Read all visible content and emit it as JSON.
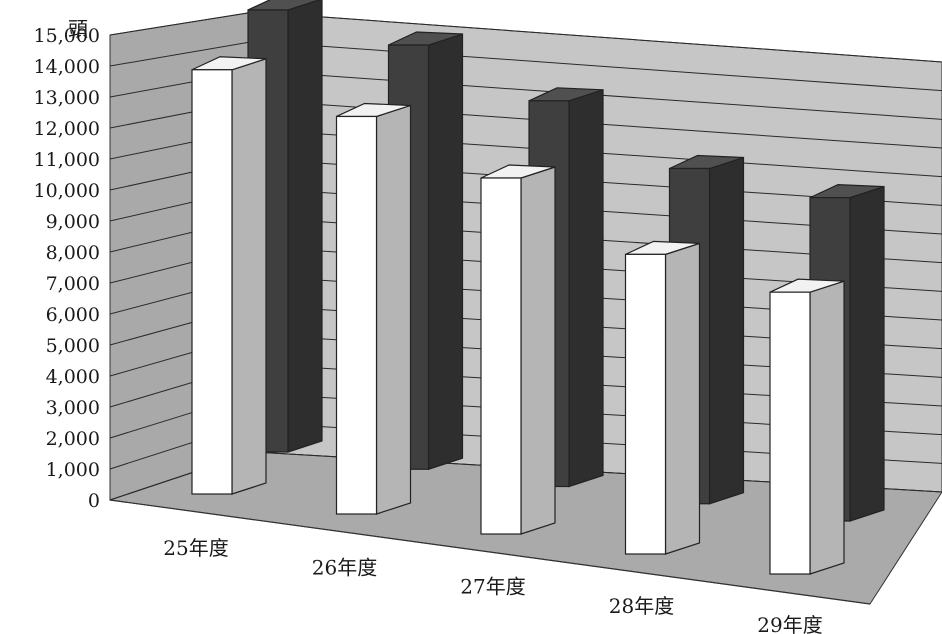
{
  "chart_data": {
    "type": "bar",
    "style": "3d-clustered-column",
    "y_unit_label": "頭",
    "categories": [
      "25年度",
      "26年度",
      "27年度",
      "28年度",
      "29年度"
    ],
    "ylim": [
      0,
      15000
    ],
    "y_ticks": [
      "0",
      "1,000",
      "2,000",
      "3,000",
      "4,000",
      "5,000",
      "6,000",
      "7,000",
      "8,000",
      "9,000",
      "10,000",
      "11,000",
      "12,000",
      "13,000",
      "14,000",
      "15,000"
    ],
    "grid": true,
    "series": [
      {
        "color": "#ffffff",
        "values": [
          14300,
          13400,
          12000,
          10100,
          9500
        ]
      },
      {
        "color": "#4d4d4d",
        "values": [
          14900,
          14300,
          13000,
          11300,
          10900
        ]
      }
    ],
    "colors": {
      "back_wall": "#c6c6c6",
      "side_wall": "#a9a9a9",
      "floor": "#aaaaaa",
      "grid_line": "#2a2a2a"
    }
  }
}
